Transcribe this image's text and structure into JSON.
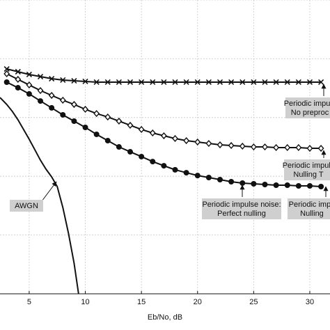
{
  "chart_data": {
    "type": "line",
    "x_label": "Eb/No, dB",
    "xlim": [
      2.4,
      31.8
    ],
    "xticks": [
      5,
      10,
      15,
      20,
      25,
      30
    ],
    "ylim": [
      1e-05,
      1
    ],
    "y_scale": "log",
    "yticks": [
      1e-05,
      0.0001,
      0.001,
      0.01,
      0.1,
      1
    ],
    "grid": true,
    "series": [
      {
        "marker": "x",
        "color": "#111111",
        "x": [
          3,
          4,
          5,
          6,
          7,
          8,
          9,
          10,
          11,
          12,
          13,
          14,
          15,
          16,
          17,
          18,
          19,
          20,
          21,
          22,
          23,
          24,
          25,
          26,
          27,
          28,
          29,
          30,
          31
        ],
        "values": [
          0.0671,
          0.0602,
          0.054,
          0.0497,
          0.0458,
          0.0434,
          0.0422,
          0.0411,
          0.04,
          0.04,
          0.04,
          0.04,
          0.04,
          0.04,
          0.04,
          0.04,
          0.04,
          0.04,
          0.04,
          0.04,
          0.04,
          0.04,
          0.04,
          0.04,
          0.04,
          0.04,
          0.04,
          0.04,
          0.04
        ]
      },
      {
        "marker": "diamond",
        "color": "#111111",
        "x": [
          3,
          4,
          5,
          6,
          7,
          8,
          9,
          10,
          11,
          12,
          13,
          14,
          15,
          16,
          17,
          18,
          19,
          20,
          21,
          22,
          23,
          24,
          25,
          26,
          27,
          28,
          29,
          30,
          31
        ],
        "values": [
          0.0555,
          0.0446,
          0.0358,
          0.0288,
          0.0238,
          0.0197,
          0.0167,
          0.0138,
          0.0117,
          0.0102,
          0.00868,
          0.00737,
          0.00626,
          0.00546,
          0.00489,
          0.00439,
          0.00404,
          0.00383,
          0.00362,
          0.00343,
          0.00334,
          0.00325,
          0.00316,
          0.00316,
          0.00308,
          0.00308,
          0.00308,
          0.00299,
          0.00299
        ]
      },
      {
        "marker": "circle",
        "color": "#111111",
        "x": [
          3,
          4,
          5,
          6,
          7,
          8,
          9,
          10,
          11,
          12,
          13,
          14,
          15,
          16,
          17,
          18,
          19,
          20,
          21,
          22,
          23,
          24,
          25,
          26,
          27,
          28,
          29,
          30,
          31
        ],
        "values": [
          0.04,
          0.0321,
          0.0252,
          0.0191,
          0.0146,
          0.0111,
          0.00868,
          0.00679,
          0.00517,
          0.00404,
          0.00316,
          0.00261,
          0.00216,
          0.00178,
          0.00151,
          0.00129,
          0.00115,
          0.00103,
          0.000952,
          0.000877,
          0.000808,
          0.000766,
          0.000745,
          0.000725,
          0.000705,
          0.000705,
          0.000686,
          0.000686,
          0.000668
        ]
      },
      {
        "marker": "none",
        "color": "#111111",
        "x": [
          2.4,
          3,
          3.5,
          4,
          4.5,
          5,
          5.5,
          6,
          6.5,
          7,
          7.5,
          8,
          8.5,
          9,
          9.4
        ],
        "values": [
          0.0219,
          0.0167,
          0.0127,
          0.00916,
          0.00626,
          0.00427,
          0.00284,
          0.00188,
          0.00132,
          0.000978,
          0.000668,
          0.000294,
          0.000107,
          3.32e-05,
          1e-05
        ]
      }
    ],
    "annotations": [
      {
        "lines": [
          "Periodic impuls",
          "No preproc"
        ]
      },
      {
        "lines": [
          "Periodic impuls",
          "Nulling T"
        ]
      },
      {
        "lines": [
          "Periodic impulse noise:",
          "Perfect nulling"
        ]
      },
      {
        "lines": [
          "Periodic impu",
          "Nulling"
        ]
      },
      {
        "lines": [
          "AWGN"
        ]
      }
    ]
  }
}
